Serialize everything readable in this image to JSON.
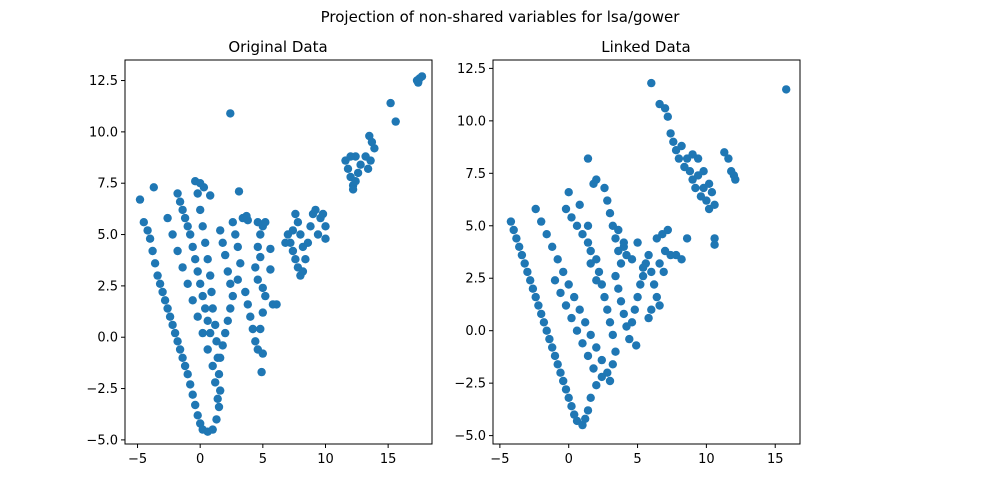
{
  "figure": {
    "suptitle": "Projection of non-shared variables for lsa/gower",
    "point_color": "#1f77b4"
  },
  "chart_data": [
    {
      "type": "scatter",
      "title": "Original Data",
      "xlabel": "",
      "ylabel": "",
      "xlim": [
        -6,
        18.5
      ],
      "ylim": [
        -5.2,
        13.5
      ],
      "xticks": [
        -5,
        0,
        5,
        10,
        15
      ],
      "yticks": [
        -5.0,
        -2.5,
        0.0,
        2.5,
        5.0,
        7.5,
        10.0,
        12.5
      ],
      "xtick_labels": [
        "−5",
        "0",
        "5",
        "10",
        "15"
      ],
      "ytick_labels": [
        "−5.0",
        "−2.5",
        "0.0",
        "2.5",
        "5.0",
        "7.5",
        "10.0",
        "12.5"
      ],
      "points": [
        [
          -4.8,
          6.7
        ],
        [
          -3.7,
          7.3
        ],
        [
          -4.5,
          5.6
        ],
        [
          -4.2,
          5.2
        ],
        [
          -4.0,
          4.8
        ],
        [
          -3.8,
          4.2
        ],
        [
          -3.6,
          3.6
        ],
        [
          -3.4,
          3.0
        ],
        [
          -3.2,
          2.6
        ],
        [
          -3.0,
          2.2
        ],
        [
          -2.8,
          1.8
        ],
        [
          -2.6,
          1.4
        ],
        [
          -2.4,
          1.0
        ],
        [
          -2.2,
          0.6
        ],
        [
          -2.0,
          0.2
        ],
        [
          -1.8,
          -0.2
        ],
        [
          -1.6,
          -0.6
        ],
        [
          -1.4,
          -1.0
        ],
        [
          -1.2,
          -1.4
        ],
        [
          -1.0,
          -1.8
        ],
        [
          -0.8,
          -2.3
        ],
        [
          -0.6,
          -2.8
        ],
        [
          -0.4,
          -3.3
        ],
        [
          -0.2,
          -3.8
        ],
        [
          0.0,
          -4.2
        ],
        [
          0.2,
          -4.5
        ],
        [
          0.6,
          -4.6
        ],
        [
          1.0,
          -4.5
        ],
        [
          1.3,
          -4.0
        ],
        [
          1.5,
          -3.4
        ],
        [
          1.6,
          -2.6
        ],
        [
          1.5,
          -1.8
        ],
        [
          1.4,
          -1.0
        ],
        [
          1.3,
          -0.2
        ],
        [
          1.2,
          0.6
        ],
        [
          1.0,
          1.4
        ],
        [
          0.9,
          2.2
        ],
        [
          0.8,
          3.0
        ],
        [
          0.6,
          3.8
        ],
        [
          0.4,
          4.6
        ],
        [
          0.2,
          5.4
        ],
        [
          0.0,
          6.2
        ],
        [
          -0.2,
          7.0
        ],
        [
          -0.4,
          7.6
        ],
        [
          0.0,
          7.5
        ],
        [
          0.3,
          7.3
        ],
        [
          0.8,
          6.9
        ],
        [
          -1.8,
          7.0
        ],
        [
          -1.6,
          6.6
        ],
        [
          -1.4,
          6.2
        ],
        [
          -1.2,
          5.8
        ],
        [
          -1.0,
          5.4
        ],
        [
          -0.8,
          5.0
        ],
        [
          -0.6,
          4.4
        ],
        [
          -0.4,
          3.8
        ],
        [
          -0.2,
          3.2
        ],
        [
          0.0,
          2.6
        ],
        [
          0.2,
          2.0
        ],
        [
          0.4,
          1.4
        ],
        [
          0.6,
          0.8
        ],
        [
          0.8,
          0.2
        ],
        [
          -2.6,
          5.8
        ],
        [
          -2.2,
          5.0
        ],
        [
          -1.8,
          4.2
        ],
        [
          -1.4,
          3.4
        ],
        [
          -1.0,
          2.6
        ],
        [
          -0.6,
          1.8
        ],
        [
          -0.2,
          1.0
        ],
        [
          0.2,
          0.2
        ],
        [
          0.6,
          -0.6
        ],
        [
          1.0,
          -1.4
        ],
        [
          1.2,
          -2.2
        ],
        [
          1.4,
          -3.0
        ],
        [
          1.6,
          5.2
        ],
        [
          1.8,
          4.6
        ],
        [
          2.0,
          4.0
        ],
        [
          2.2,
          3.2
        ],
        [
          2.4,
          2.6
        ],
        [
          2.6,
          2.0
        ],
        [
          2.4,
          1.4
        ],
        [
          2.2,
          0.8
        ],
        [
          2.0,
          0.2
        ],
        [
          1.8,
          -0.4
        ],
        [
          1.6,
          -1.0
        ],
        [
          3.0,
          4.4
        ],
        [
          3.2,
          3.6
        ],
        [
          3.0,
          2.8
        ],
        [
          2.8,
          5.0
        ],
        [
          2.6,
          5.6
        ],
        [
          3.4,
          5.8
        ],
        [
          3.6,
          2.2
        ],
        [
          3.8,
          1.6
        ],
        [
          4.0,
          1.0
        ],
        [
          4.2,
          0.4
        ],
        [
          4.4,
          -0.2
        ],
        [
          4.6,
          -0.6
        ],
        [
          4.8,
          0.4
        ],
        [
          5.0,
          1.2
        ],
        [
          5.2,
          2.0
        ],
        [
          5.0,
          2.4
        ],
        [
          4.6,
          2.8
        ],
        [
          4.4,
          3.4
        ],
        [
          4.6,
          4.4
        ],
        [
          4.8,
          5.0
        ],
        [
          5.0,
          5.4
        ],
        [
          5.2,
          5.6
        ],
        [
          4.6,
          5.6
        ],
        [
          5.0,
          -0.8
        ],
        [
          4.9,
          -1.7
        ],
        [
          4.8,
          3.9
        ],
        [
          5.6,
          3.3
        ],
        [
          5.6,
          4.3
        ],
        [
          5.8,
          1.6
        ],
        [
          6.1,
          1.6
        ],
        [
          2.4,
          10.9
        ],
        [
          3.1,
          7.1
        ],
        [
          3.8,
          5.7
        ],
        [
          3.7,
          5.9
        ],
        [
          7.0,
          5.0
        ],
        [
          7.2,
          4.6
        ],
        [
          7.4,
          4.2
        ],
        [
          7.6,
          3.8
        ],
        [
          7.8,
          3.4
        ],
        [
          8.0,
          3.0
        ],
        [
          8.2,
          3.2
        ],
        [
          8.4,
          3.8
        ],
        [
          8.2,
          4.4
        ],
        [
          8.0,
          5.0
        ],
        [
          7.8,
          5.6
        ],
        [
          7.6,
          6.0
        ],
        [
          8.6,
          4.6
        ],
        [
          8.8,
          5.4
        ],
        [
          9.0,
          6.0
        ],
        [
          9.2,
          6.2
        ],
        [
          9.6,
          5.8
        ],
        [
          10.0,
          5.4
        ],
        [
          9.8,
          6.0
        ],
        [
          9.4,
          5.0
        ],
        [
          10.0,
          4.8
        ],
        [
          6.8,
          4.6
        ],
        [
          7.4,
          5.2
        ],
        [
          11.6,
          8.6
        ],
        [
          11.8,
          8.2
        ],
        [
          12.0,
          7.8
        ],
        [
          12.2,
          7.4
        ],
        [
          12.4,
          7.6
        ],
        [
          12.6,
          8.0
        ],
        [
          12.8,
          8.4
        ],
        [
          12.4,
          8.8
        ],
        [
          12.0,
          8.8
        ],
        [
          13.2,
          8.8
        ],
        [
          13.4,
          8.2
        ],
        [
          13.6,
          8.6
        ],
        [
          12.2,
          7.2
        ],
        [
          13.5,
          9.8
        ],
        [
          13.7,
          9.5
        ],
        [
          13.9,
          9.2
        ],
        [
          15.2,
          11.4
        ],
        [
          15.6,
          10.5
        ],
        [
          17.3,
          12.5
        ],
        [
          17.5,
          12.6
        ],
        [
          17.7,
          12.7
        ],
        [
          17.4,
          12.4
        ]
      ]
    },
    {
      "type": "scatter",
      "title": "Linked Data",
      "xlabel": "",
      "ylabel": "",
      "xlim": [
        -5.5,
        16.8
      ],
      "ylim": [
        -5.4,
        12.9
      ],
      "xticks": [
        -5,
        0,
        5,
        10,
        15
      ],
      "yticks": [
        -5.0,
        -2.5,
        0.0,
        2.5,
        5.0,
        7.5,
        10.0,
        12.5
      ],
      "xtick_labels": [
        "−5",
        "0",
        "5",
        "10",
        "15"
      ],
      "ytick_labels": [
        "−5.0",
        "−2.5",
        "0.0",
        "2.5",
        "5.0",
        "7.5",
        "10.0",
        "12.5"
      ],
      "points": [
        [
          -4.2,
          5.2
        ],
        [
          -4.0,
          4.8
        ],
        [
          -3.8,
          4.4
        ],
        [
          -3.6,
          4.0
        ],
        [
          -3.4,
          3.6
        ],
        [
          -3.2,
          3.2
        ],
        [
          -3.0,
          2.8
        ],
        [
          -2.8,
          2.4
        ],
        [
          -2.6,
          2.0
        ],
        [
          -2.4,
          1.6
        ],
        [
          -2.2,
          1.2
        ],
        [
          -2.0,
          0.8
        ],
        [
          -1.8,
          0.4
        ],
        [
          -1.6,
          0.0
        ],
        [
          -1.4,
          -0.4
        ],
        [
          -1.2,
          -0.8
        ],
        [
          -1.0,
          -1.2
        ],
        [
          -0.8,
          -1.6
        ],
        [
          -0.6,
          -2.0
        ],
        [
          -0.4,
          -2.4
        ],
        [
          -0.2,
          -2.8
        ],
        [
          0.0,
          -3.2
        ],
        [
          0.2,
          -3.6
        ],
        [
          0.4,
          -4.0
        ],
        [
          0.6,
          -4.3
        ],
        [
          1.0,
          -4.5
        ],
        [
          1.2,
          -4.2
        ],
        [
          1.4,
          -3.8
        ],
        [
          1.6,
          -3.2
        ],
        [
          2.0,
          -2.6
        ],
        [
          2.4,
          -2.2
        ],
        [
          2.8,
          -2.0
        ],
        [
          3.0,
          -2.4
        ],
        [
          3.2,
          -1.6
        ],
        [
          3.4,
          -1.0
        ],
        [
          3.2,
          -0.2
        ],
        [
          3.0,
          0.4
        ],
        [
          2.8,
          1.0
        ],
        [
          2.6,
          1.6
        ],
        [
          2.4,
          2.2
        ],
        [
          2.2,
          2.8
        ],
        [
          2.0,
          3.4
        ],
        [
          1.6,
          3.8
        ],
        [
          1.4,
          4.2
        ],
        [
          1.0,
          4.6
        ],
        [
          0.6,
          5.0
        ],
        [
          0.2,
          5.4
        ],
        [
          -0.2,
          5.8
        ],
        [
          -2.4,
          5.8
        ],
        [
          -2.0,
          5.2
        ],
        [
          -1.6,
          4.6
        ],
        [
          -1.2,
          4.0
        ],
        [
          -0.8,
          3.4
        ],
        [
          -0.4,
          2.8
        ],
        [
          0.0,
          2.2
        ],
        [
          0.4,
          1.6
        ],
        [
          0.8,
          1.0
        ],
        [
          1.2,
          0.4
        ],
        [
          1.6,
          -0.2
        ],
        [
          2.0,
          -0.8
        ],
        [
          2.4,
          -1.4
        ],
        [
          -1.0,
          2.4
        ],
        [
          -0.6,
          1.8
        ],
        [
          -0.2,
          1.2
        ],
        [
          0.2,
          0.6
        ],
        [
          0.6,
          0.0
        ],
        [
          1.0,
          -0.6
        ],
        [
          1.4,
          -1.2
        ],
        [
          1.8,
          -1.8
        ],
        [
          0.0,
          6.6
        ],
        [
          0.8,
          6.0
        ],
        [
          1.4,
          5.0
        ],
        [
          1.6,
          3.2
        ],
        [
          2.0,
          2.4
        ],
        [
          1.4,
          8.2
        ],
        [
          1.8,
          7.0
        ],
        [
          2.0,
          7.2
        ],
        [
          2.6,
          6.8
        ],
        [
          2.8,
          6.2
        ],
        [
          3.0,
          5.6
        ],
        [
          3.2,
          5.0
        ],
        [
          3.4,
          4.4
        ],
        [
          3.6,
          3.8
        ],
        [
          3.8,
          3.2
        ],
        [
          3.6,
          4.8
        ],
        [
          4.0,
          4.2
        ],
        [
          4.2,
          3.6
        ],
        [
          3.4,
          2.6
        ],
        [
          3.6,
          2.0
        ],
        [
          3.8,
          1.4
        ],
        [
          4.0,
          0.8
        ],
        [
          4.2,
          0.2
        ],
        [
          4.4,
          -0.4
        ],
        [
          4.6,
          0.4
        ],
        [
          4.8,
          1.0
        ],
        [
          5.0,
          1.6
        ],
        [
          5.2,
          2.2
        ],
        [
          5.4,
          2.6
        ],
        [
          5.6,
          3.2
        ],
        [
          5.8,
          3.6
        ],
        [
          6.0,
          2.8
        ],
        [
          6.2,
          2.2
        ],
        [
          6.4,
          1.6
        ],
        [
          6.6,
          1.2
        ],
        [
          6.0,
          1.0
        ],
        [
          5.8,
          0.6
        ],
        [
          4.9,
          -0.7
        ],
        [
          4.0,
          4.0
        ],
        [
          4.6,
          3.4
        ],
        [
          5.0,
          4.2
        ],
        [
          5.4,
          3.0
        ],
        [
          6.4,
          4.4
        ],
        [
          6.8,
          4.6
        ],
        [
          7.2,
          4.8
        ],
        [
          7.0,
          3.8
        ],
        [
          7.4,
          3.6
        ],
        [
          7.8,
          3.6
        ],
        [
          8.2,
          3.4
        ],
        [
          8.6,
          4.4
        ],
        [
          6.6,
          3.2
        ],
        [
          6.9,
          2.8
        ],
        [
          6.0,
          11.8
        ],
        [
          6.6,
          10.8
        ],
        [
          7.0,
          10.6
        ],
        [
          7.2,
          10.2
        ],
        [
          7.4,
          9.4
        ],
        [
          7.6,
          9.0
        ],
        [
          7.8,
          8.6
        ],
        [
          8.0,
          8.2
        ],
        [
          8.2,
          8.8
        ],
        [
          8.4,
          7.8
        ],
        [
          8.6,
          8.2
        ],
        [
          8.8,
          7.6
        ],
        [
          9.0,
          7.2
        ],
        [
          9.2,
          6.8
        ],
        [
          9.4,
          7.4
        ],
        [
          9.6,
          6.4
        ],
        [
          9.8,
          6.8
        ],
        [
          10.0,
          6.2
        ],
        [
          10.2,
          5.8
        ],
        [
          10.4,
          6.6
        ],
        [
          10.6,
          6.0
        ],
        [
          10.6,
          4.4
        ],
        [
          10.6,
          4.1
        ],
        [
          10.2,
          7.0
        ],
        [
          9.8,
          7.6
        ],
        [
          9.4,
          8.2
        ],
        [
          9.0,
          8.4
        ],
        [
          11.3,
          8.5
        ],
        [
          11.6,
          8.2
        ],
        [
          11.8,
          7.6
        ],
        [
          12.0,
          7.4
        ],
        [
          12.1,
          7.2
        ],
        [
          15.8,
          11.5
        ]
      ]
    }
  ]
}
